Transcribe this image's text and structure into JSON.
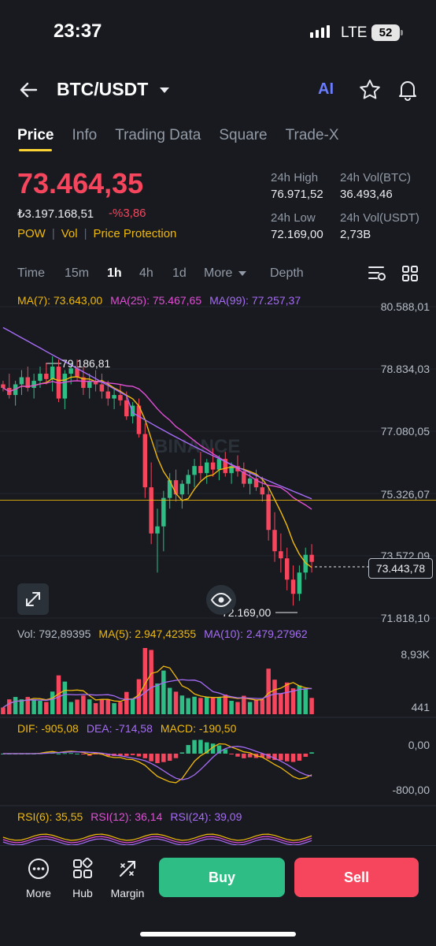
{
  "status_bar": {
    "time": "23:37",
    "network": "LTE",
    "battery": "52"
  },
  "header": {
    "pair": "BTC/USDT",
    "ai_label": "AI"
  },
  "tabs": [
    {
      "label": "Price",
      "active": true
    },
    {
      "label": "Info"
    },
    {
      "label": "Trading Data"
    },
    {
      "label": "Square"
    },
    {
      "label": "Trade-X"
    }
  ],
  "ticker": {
    "last_price": "73.464,35",
    "fiat_price": "₺3.197.168,51",
    "change": "-%3,86",
    "tags": [
      "POW",
      "Vol",
      "Price Protection"
    ],
    "high_label": "24h High",
    "high": "76.971,52",
    "vol_btc_label": "24h Vol(BTC)",
    "vol_btc": "36.493,46",
    "low_label": "24h Low",
    "low": "72.169,00",
    "vol_usdt_label": "24h Vol(USDT)",
    "vol_usdt": "2,73B"
  },
  "timeframes": {
    "time": "Time",
    "m15": "15m",
    "h1": "1h",
    "h4": "4h",
    "d1": "1d",
    "more": "More",
    "depth": "Depth"
  },
  "main_legend": {
    "ma7": "MA(7): 73.643,00",
    "ma25": "MA(25): 75.467,65",
    "ma99": "MA(99): 77.257,37"
  },
  "main_axis": [
    "80.588,01",
    "78.834,03",
    "77.080,05",
    "75.326,07",
    "73.572,09",
    "71.818,10"
  ],
  "main_marks": {
    "high_mark": "79.186,81",
    "low_mark": "72.169,00",
    "current": "73.443,78"
  },
  "watermark": "BINANCE",
  "vol_legend": {
    "vol": "Vol: 792,89395",
    "ma5": "MA(5): 2.947,42355",
    "ma10": "MA(10): 2.479,27962"
  },
  "vol_axis": [
    "8,93K",
    "441"
  ],
  "macd_legend": {
    "dif": "DIF: -905,08",
    "dea": "DEA: -714,58",
    "macd": "MACD: -190,50"
  },
  "macd_axis": [
    "0,00",
    "-800,00"
  ],
  "rsi_legend": {
    "rsi6": "RSI(6): 35,55",
    "rsi12": "RSI(12): 36,14",
    "rsi24": "RSI(24): 39,09"
  },
  "bottom_nav": {
    "more": "More",
    "hub": "Hub",
    "margin": "Margin",
    "buy": "Buy",
    "sell": "Sell"
  },
  "colors": {
    "up": "#2ebd85",
    "down": "#f6465d",
    "ma7": "#f0b90b",
    "ma25": "#e04fd4",
    "ma99": "#a66cf5",
    "accent": "#fcd535"
  },
  "chart_data": {
    "type": "candlestick",
    "interval": "1h",
    "y_range": [
      71818.1,
      80588.01
    ],
    "y_ticks": [
      80588.01,
      78834.03,
      77080.05,
      75326.07,
      73572.09,
      71818.1
    ],
    "candles": [
      [
        78400,
        78500,
        78200,
        78300
      ],
      [
        78300,
        78700,
        78000,
        78100
      ],
      [
        78100,
        78500,
        77800,
        78400
      ],
      [
        78400,
        78800,
        78100,
        78600
      ],
      [
        78600,
        78900,
        78200,
        78300
      ],
      [
        78300,
        78700,
        78000,
        78500
      ],
      [
        78500,
        78900,
        78300,
        78700
      ],
      [
        78700,
        79000,
        78400,
        78550
      ],
      [
        78550,
        79190,
        78200,
        78900
      ],
      [
        78900,
        79100,
        77900,
        78000
      ],
      [
        78000,
        78800,
        77700,
        78700
      ],
      [
        78700,
        79000,
        78400,
        78850
      ],
      [
        78850,
        79100,
        78500,
        78600
      ],
      [
        78600,
        78900,
        78100,
        78300
      ],
      [
        78300,
        78700,
        78000,
        78500
      ],
      [
        78500,
        78800,
        78200,
        78400
      ],
      [
        78400,
        78700,
        78000,
        78200
      ],
      [
        78200,
        78500,
        77800,
        78000
      ],
      [
        78000,
        78300,
        77700,
        78100
      ],
      [
        78100,
        78400,
        77800,
        77950
      ],
      [
        77950,
        78200,
        77400,
        77500
      ],
      [
        77500,
        77900,
        77300,
        77800
      ],
      [
        77800,
        78000,
        76900,
        77000
      ],
      [
        77000,
        77300,
        75200,
        75500
      ],
      [
        75500,
        76200,
        73900,
        74200
      ],
      [
        74200,
        74900,
        73100,
        74400
      ],
      [
        74400,
        75400,
        73700,
        75200
      ],
      [
        75200,
        75900,
        74900,
        75700
      ],
      [
        75700,
        76000,
        75100,
        75300
      ],
      [
        75300,
        75700,
        74900,
        75600
      ],
      [
        75600,
        76000,
        75300,
        75850
      ],
      [
        75850,
        76300,
        75500,
        76100
      ],
      [
        76100,
        76500,
        75700,
        75900
      ],
      [
        75900,
        76300,
        75600,
        76200
      ],
      [
        76200,
        76600,
        75800,
        76000
      ],
      [
        76000,
        76400,
        75700,
        76300
      ],
      [
        76300,
        76500,
        75800,
        75900
      ],
      [
        75900,
        76200,
        75600,
        76100
      ],
      [
        76100,
        76400,
        75800,
        75950
      ],
      [
        75950,
        76200,
        75500,
        75600
      ],
      [
        75600,
        75900,
        75300,
        75750
      ],
      [
        75750,
        76000,
        75400,
        75500
      ],
      [
        75500,
        75800,
        75100,
        75300
      ],
      [
        75300,
        75500,
        74000,
        74300
      ],
      [
        74300,
        74800,
        73400,
        73700
      ],
      [
        73700,
        74200,
        73100,
        73500
      ],
      [
        73500,
        73800,
        72600,
        72900
      ],
      [
        72900,
        73300,
        72169,
        72500
      ],
      [
        72500,
        73300,
        72300,
        73100
      ],
      [
        73100,
        73800,
        72900,
        73600
      ],
      [
        73600,
        73900,
        73100,
        73400
      ]
    ],
    "volume_series": "MA(5), MA(10)",
    "indicators": [
      "MA(7)",
      "MA(25)",
      "MA(99)",
      "VOL",
      "MACD",
      "RSI"
    ]
  }
}
